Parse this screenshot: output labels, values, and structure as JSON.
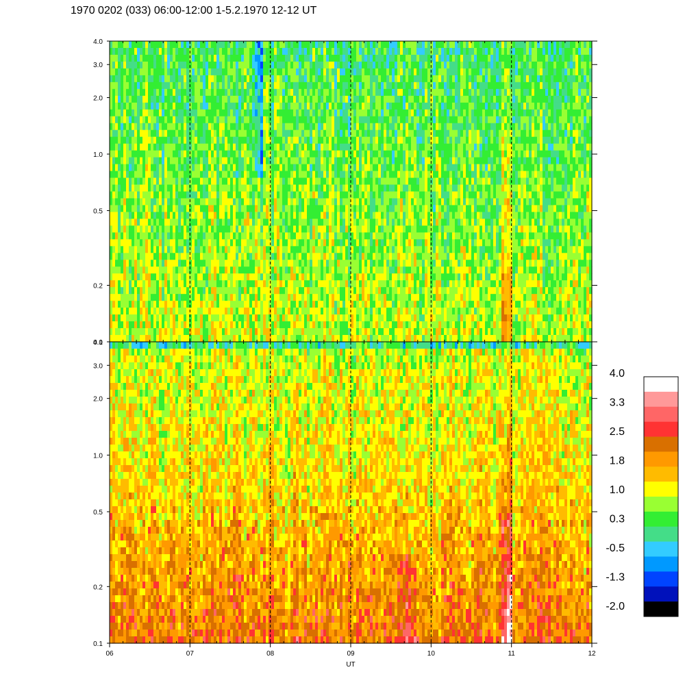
{
  "title": "1970 0202 (033) 06:00-12:00 1-5.2.1970  12-12 UT",
  "chart_data": {
    "type": "heatmap",
    "title": "1970 0202 (033) 06:00-12:00 1-5.2.1970  12-12 UT",
    "xlabel": "UT",
    "x_ticks": [
      "06",
      "07",
      "08",
      "09",
      "10",
      "11",
      "12"
    ],
    "x_range": [
      6,
      12
    ],
    "y_scale": "log",
    "y_range": [
      0.1,
      4.0
    ],
    "y_ticks": [
      "4.0",
      "3.0",
      "2.0",
      "1.0",
      "0.5",
      "0.2",
      "0.1"
    ],
    "panels": [
      {
        "name": "upper",
        "dominant_level_low_freq": 1.0,
        "dominant_level_high_freq": 0.3
      },
      {
        "name": "lower",
        "dominant_level_low_freq": 1.8,
        "dominant_level_high_freq": 1.0
      }
    ],
    "vertical_markers_hours": [
      7,
      8,
      9,
      10,
      11
    ],
    "colorbar": {
      "labels": [
        "4.0",
        "3.3",
        "2.5",
        "1.8",
        "1.0",
        "0.3",
        "-0.5",
        "-1.3",
        "-2.0"
      ],
      "min": -2.0,
      "max": 4.0,
      "colors": [
        "#ffffff",
        "#ff9999",
        "#ff6666",
        "#ff3333",
        "#d97000",
        "#ff9900",
        "#ffbb00",
        "#ffff00",
        "#99ff33",
        "#33ee33",
        "#44dd88",
        "#33ccff",
        "#0099ff",
        "#0044ff",
        "#0011bb",
        "#000000"
      ]
    }
  }
}
